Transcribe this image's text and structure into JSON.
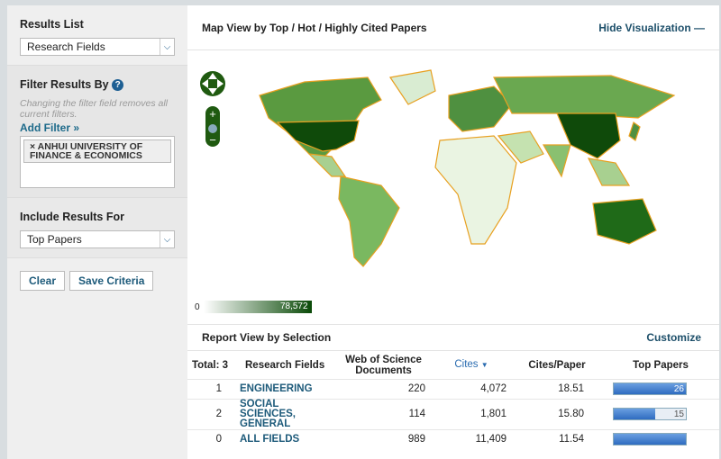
{
  "sidebar": {
    "results_list_label": "Results List",
    "results_list_value": "Research Fields",
    "filter_label": "Filter Results By",
    "filter_help": "?",
    "filter_note": "Changing the filter field removes all current filters.",
    "add_filter": "Add Filter »",
    "filter_chip": "ANHUI UNIVERSITY OF FINANCE & ECONOMICS",
    "chip_remove": "×",
    "include_label": "Include Results For",
    "include_value": "Top Papers",
    "clear": "Clear",
    "save": "Save Criteria"
  },
  "map": {
    "title": "Map View by Top / Hot / Highly Cited Papers",
    "hide": "Hide Visualization",
    "legend_min": "0",
    "legend_max": "78,572",
    "color_low": "#ffffff",
    "color_high": "#0a4a08",
    "border": "#e8a020"
  },
  "report": {
    "title": "Report View by Selection",
    "customize": "Customize",
    "headers": {
      "total": "Total: 3",
      "field": "Research Fields",
      "docs": "Web of Science Documents",
      "cites": "Cites",
      "cpp": "Cites/Paper",
      "top": "Top Papers"
    },
    "rows": [
      {
        "rank": "1",
        "field": "ENGINEERING",
        "docs": "220",
        "cites": "4,072",
        "cpp": "18.51",
        "top": "26",
        "fill": 1.0
      },
      {
        "rank": "2",
        "field": "SOCIAL SCIENCES, GENERAL",
        "docs": "114",
        "cites": "1,801",
        "cpp": "15.80",
        "top": "15",
        "fill": 0.58
      },
      {
        "rank": "0",
        "field": "ALL FIELDS",
        "docs": "989",
        "cites": "11,409",
        "cpp": "11.54",
        "top": "",
        "fill": 1.0
      }
    ]
  }
}
